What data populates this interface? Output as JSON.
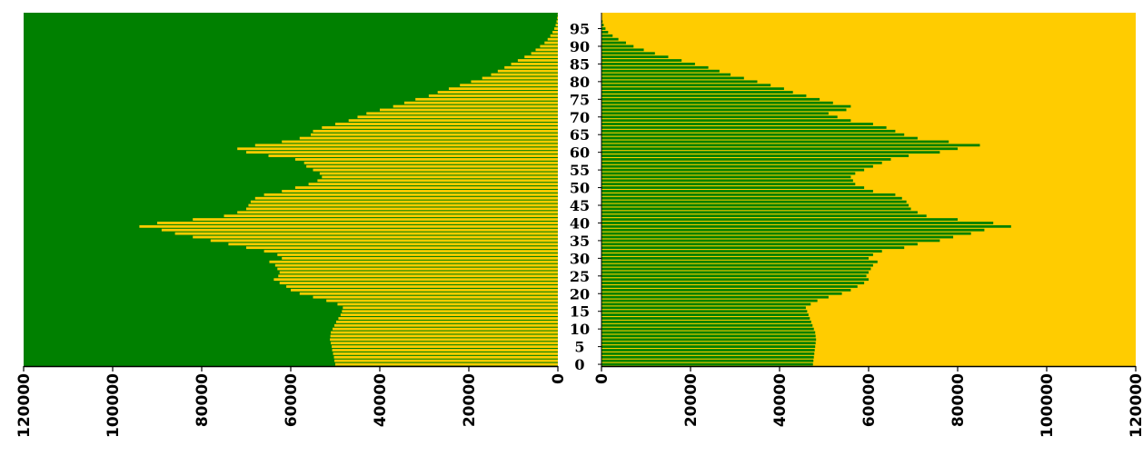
{
  "chart_data": {
    "type": "bar",
    "orientation": "horizontal",
    "layout": "population-pyramid",
    "colors": {
      "left_background": "#008000",
      "left_bars": "#ffcc00",
      "right_background": "#ffcc00",
      "right_bars": "#008000"
    },
    "y_ticks": [
      "0",
      "5",
      "10",
      "15",
      "20",
      "25",
      "30",
      "35",
      "40",
      "45",
      "50",
      "55",
      "60",
      "65",
      "70",
      "75",
      "80",
      "85",
      "90",
      "95"
    ],
    "left_axis": {
      "range": [
        0,
        120000
      ],
      "reversed": true,
      "ticks": [
        "120000",
        "100000",
        "80000",
        "60000",
        "40000",
        "20000",
        "0"
      ]
    },
    "right_axis": {
      "range": [
        0,
        120000
      ],
      "ticks": [
        "0",
        "20000",
        "40000",
        "60000",
        "80000",
        "100000",
        "120000"
      ]
    },
    "grid": false,
    "legend": "none",
    "ages": [
      0,
      1,
      2,
      3,
      4,
      5,
      6,
      7,
      8,
      9,
      10,
      11,
      12,
      13,
      14,
      15,
      16,
      17,
      18,
      19,
      20,
      21,
      22,
      23,
      24,
      25,
      26,
      27,
      28,
      29,
      30,
      31,
      32,
      33,
      34,
      35,
      36,
      37,
      38,
      39,
      40,
      41,
      42,
      43,
      44,
      45,
      46,
      47,
      48,
      49,
      50,
      51,
      52,
      53,
      54,
      55,
      56,
      57,
      58,
      59,
      60,
      61,
      62,
      63,
      64,
      65,
      66,
      67,
      68,
      69,
      70,
      71,
      72,
      73,
      74,
      75,
      76,
      77,
      78,
      79,
      80,
      81,
      82,
      83,
      84,
      85,
      86,
      87,
      88,
      89,
      90,
      91,
      92,
      93,
      94,
      95,
      96,
      97,
      98,
      99
    ],
    "series": [
      {
        "side": "left",
        "values": [
          50000,
          50200,
          50300,
          50500,
          50700,
          50800,
          51000,
          51200,
          51100,
          51000,
          50600,
          50200,
          49800,
          49300,
          48800,
          48500,
          48300,
          49500,
          52000,
          55000,
          58000,
          60000,
          61000,
          62500,
          63800,
          62800,
          62500,
          63000,
          63500,
          64800,
          62000,
          63000,
          66000,
          70000,
          74000,
          78000,
          82000,
          86000,
          89000,
          94000,
          90000,
          82000,
          75000,
          72000,
          70000,
          69500,
          69000,
          68000,
          66000,
          62000,
          59000,
          56000,
          54000,
          53000,
          53500,
          55000,
          56500,
          57000,
          59000,
          65000,
          70000,
          72000,
          68000,
          62000,
          58000,
          55500,
          55000,
          53000,
          50000,
          47000,
          45000,
          43000,
          40000,
          37000,
          34500,
          32000,
          29000,
          27000,
          24500,
          22000,
          19500,
          17000,
          15000,
          13500,
          12000,
          10500,
          9000,
          7500,
          6000,
          5000,
          4000,
          3000,
          2300,
          1700,
          1200,
          800,
          500,
          300,
          150,
          50
        ]
      },
      {
        "side": "right",
        "values": [
          47500,
          47600,
          47700,
          47800,
          47900,
          48000,
          48100,
          48200,
          48100,
          48000,
          47700,
          47400,
          47100,
          46800,
          46500,
          46200,
          45900,
          47000,
          48500,
          51000,
          54000,
          56000,
          57500,
          59000,
          60000,
          59500,
          60000,
          60500,
          61000,
          62000,
          60000,
          61000,
          63000,
          68000,
          71000,
          76000,
          79000,
          83000,
          86000,
          92000,
          88000,
          80000,
          73000,
          71000,
          69500,
          69000,
          68500,
          67500,
          66000,
          61000,
          59000,
          57000,
          56500,
          56000,
          57000,
          59000,
          61000,
          63000,
          65000,
          69000,
          76000,
          80000,
          85000,
          78000,
          71000,
          68000,
          66000,
          64000,
          61000,
          56000,
          53000,
          51000,
          55000,
          56000,
          52000,
          49000,
          46000,
          43000,
          41000,
          38000,
          35000,
          32000,
          29000,
          26500,
          24000,
          21000,
          18000,
          15000,
          12000,
          9500,
          7200,
          5500,
          3800,
          2500,
          1500,
          900,
          500,
          250,
          100,
          30
        ]
      }
    ]
  }
}
